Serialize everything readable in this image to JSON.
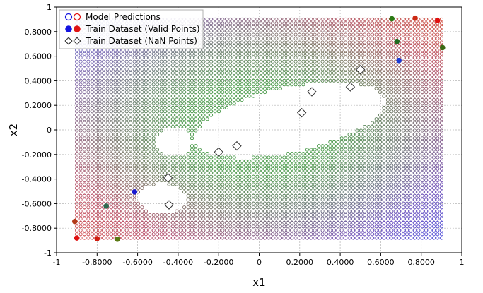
{
  "chart_data": {
    "type": "scatter",
    "xlabel": "x1",
    "ylabel": "x2",
    "xlim": [
      -1,
      1
    ],
    "ylim": [
      -1,
      1
    ],
    "grid": true,
    "legend_position": "top-left",
    "x_ticks": [
      {
        "value": -1,
        "label": "-1"
      },
      {
        "value": -0.8,
        "label": "-0.8000"
      },
      {
        "value": -0.6,
        "label": "-0.6000"
      },
      {
        "value": -0.4,
        "label": "-0.4000"
      },
      {
        "value": -0.2,
        "label": "-0.2000"
      },
      {
        "value": 0,
        "label": "0"
      },
      {
        "value": 0.2,
        "label": "0.2000"
      },
      {
        "value": 0.4,
        "label": "0.4000"
      },
      {
        "value": 0.6,
        "label": "0.6000"
      },
      {
        "value": 0.8,
        "label": "0.8000"
      },
      {
        "value": 1,
        "label": "1"
      }
    ],
    "y_ticks": [
      {
        "value": 1,
        "label": "1"
      },
      {
        "value": 0.8,
        "label": "0.8000"
      },
      {
        "value": 0.6,
        "label": "0.6000"
      },
      {
        "value": 0.4,
        "label": "0.4000"
      },
      {
        "value": 0.2,
        "label": "0.2000"
      },
      {
        "value": 0,
        "label": "0"
      },
      {
        "value": -0.2,
        "label": "-0.2000"
      },
      {
        "value": -0.4,
        "label": "-0.4000"
      },
      {
        "value": -0.6,
        "label": "-0.6000"
      },
      {
        "value": -0.8,
        "label": "-0.8000"
      },
      {
        "value": -1,
        "label": "-1"
      }
    ],
    "legend": [
      {
        "label": "Model Predictions",
        "marker": "hollow-circle-pair"
      },
      {
        "label": "Train Dataset (Valid Points)",
        "marker": "filled-circle-pair"
      },
      {
        "label": "Train Dataset (NaN Points)",
        "marker": "hollow-diamond-pair"
      }
    ],
    "model_predictions": {
      "x_range": [
        -0.9,
        0.9
      ],
      "y_range": [
        -0.88,
        0.9
      ],
      "nx": 96,
      "ny": 58,
      "nan_regions": [
        {
          "cx": 0.15,
          "cy": 0.08,
          "rx": 0.5,
          "ry": 0.25,
          "rotation_deg": 24
        },
        {
          "cx": -0.42,
          "cy": -0.1,
          "rx": 0.09,
          "ry": 0.12,
          "rotation_deg": 0
        },
        {
          "cx": -0.48,
          "cy": -0.56,
          "rx": 0.12,
          "ry": 0.12,
          "rotation_deg": 0
        }
      ],
      "colors": {
        "bottom_left": "#cc3333",
        "bottom_right": "#3a3ad6",
        "top_left": "#4b5bc8",
        "top_right": "#cc3b2a",
        "center": "#2e8a2e"
      }
    },
    "valid_points": [
      {
        "x": -0.9,
        "y": -0.88,
        "color": "#e01010"
      },
      {
        "x": -0.91,
        "y": -0.745,
        "color": "#b33a1a"
      },
      {
        "x": -0.8,
        "y": -0.885,
        "color": "#d01c10"
      },
      {
        "x": -0.755,
        "y": -0.62,
        "color": "#2e6a50"
      },
      {
        "x": -0.7,
        "y": -0.89,
        "color": "#5a7a14"
      },
      {
        "x": -0.615,
        "y": -0.505,
        "color": "#1a1ad0"
      },
      {
        "x": 0.655,
        "y": 0.905,
        "color": "#2a7a14"
      },
      {
        "x": 0.68,
        "y": 0.72,
        "color": "#1e6a1e"
      },
      {
        "x": 0.69,
        "y": 0.565,
        "color": "#1a3ad6"
      },
      {
        "x": 0.77,
        "y": 0.91,
        "color": "#cc2a14"
      },
      {
        "x": 0.88,
        "y": 0.89,
        "color": "#e01010"
      },
      {
        "x": 0.905,
        "y": 0.67,
        "color": "#3a6a14"
      }
    ],
    "nan_points": [
      {
        "x": -0.45,
        "y": -0.39
      },
      {
        "x": -0.445,
        "y": -0.61
      },
      {
        "x": -0.2,
        "y": -0.18
      },
      {
        "x": -0.11,
        "y": -0.13
      },
      {
        "x": 0.21,
        "y": 0.14
      },
      {
        "x": 0.26,
        "y": 0.31
      },
      {
        "x": 0.45,
        "y": 0.35
      },
      {
        "x": 0.5,
        "y": 0.49
      }
    ]
  }
}
